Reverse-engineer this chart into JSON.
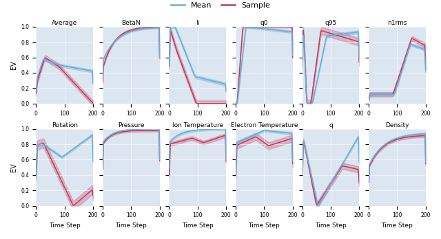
{
  "titles_row1": [
    "Average",
    "BetaN",
    "li",
    "q0",
    "q95",
    "n1rms"
  ],
  "titles_row2": [
    "Rotation",
    "Pressure",
    "Ion Temperature",
    "Electron Temperature",
    "q",
    "Density"
  ],
  "ylabel": "EV",
  "xlabel": "Time Step",
  "mean_color": "#6aaed6",
  "sample_color": "#c8385a",
  "mean_fill_alpha": 0.35,
  "sample_fill_alpha": 0.28,
  "bg_color": "#dce6f1",
  "n_points": 201
}
